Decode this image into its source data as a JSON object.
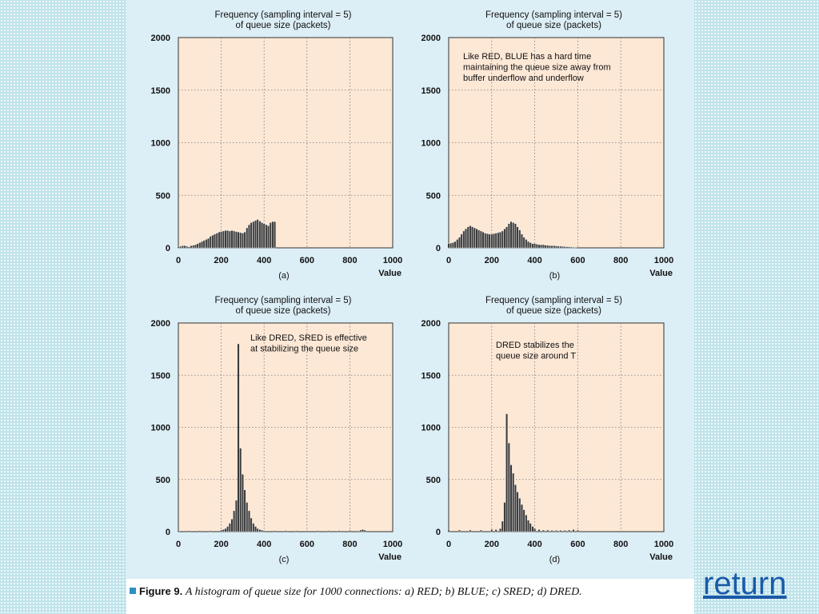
{
  "return_link": "return",
  "figure": {
    "caption_label": "Figure 9.",
    "caption_text": "A histogram of queue size for 1000 connections: a) RED; b) BLUE; c) SRED; d) DRED."
  },
  "colors": {
    "plot_bg": "#fde8d6",
    "panel_bg": "#dceef6",
    "bar": "#3a3a3a",
    "caption_square": "#2c8fc4",
    "page_bg": "#bfe3ea"
  },
  "chart_data": [
    {
      "type": "bar",
      "panel": "(a)",
      "title_lines": [
        "Frequency (sampling interval = 5)",
        "of queue size (packets)"
      ],
      "xlabel": "Value",
      "xlim": [
        0,
        1000
      ],
      "ylim": [
        0,
        2000
      ],
      "xticks": [
        0,
        200,
        400,
        600,
        800,
        1000
      ],
      "yticks": [
        0,
        500,
        1000,
        1500,
        2000
      ],
      "grid": true,
      "annotation": [],
      "x": [
        0,
        10,
        20,
        30,
        40,
        50,
        60,
        70,
        80,
        90,
        100,
        110,
        120,
        130,
        140,
        150,
        160,
        170,
        180,
        190,
        200,
        210,
        220,
        230,
        240,
        250,
        260,
        270,
        280,
        290,
        300,
        310,
        320,
        330,
        340,
        350,
        360,
        370,
        380,
        390,
        400,
        410,
        420,
        430,
        440,
        450
      ],
      "values": [
        10,
        15,
        20,
        20,
        15,
        10,
        20,
        25,
        30,
        40,
        50,
        60,
        70,
        80,
        90,
        110,
        120,
        130,
        140,
        150,
        155,
        160,
        165,
        165,
        160,
        165,
        160,
        155,
        150,
        145,
        140,
        150,
        190,
        220,
        240,
        250,
        260,
        270,
        255,
        240,
        230,
        220,
        210,
        240,
        250,
        250
      ]
    },
    {
      "type": "bar",
      "panel": "(b)",
      "title_lines": [
        "Frequency (sampling interval = 5)",
        "of queue size (packets)"
      ],
      "xlabel": "Value",
      "xlim": [
        0,
        1000
      ],
      "ylim": [
        0,
        2000
      ],
      "xticks": [
        0,
        200,
        400,
        600,
        800,
        1000
      ],
      "yticks": [
        0,
        500,
        1000,
        1500,
        2000
      ],
      "grid": true,
      "annotation": [
        "Like RED, BLUE has a hard time",
        "maintaining the queue size away from",
        "buffer underflow and underflow"
      ],
      "x": [
        0,
        10,
        20,
        30,
        40,
        50,
        60,
        70,
        80,
        90,
        100,
        110,
        120,
        130,
        140,
        150,
        160,
        170,
        180,
        190,
        200,
        210,
        220,
        230,
        240,
        250,
        260,
        270,
        280,
        290,
        300,
        310,
        320,
        330,
        340,
        350,
        360,
        370,
        380,
        390,
        400,
        410,
        420,
        430,
        440,
        450,
        460,
        470,
        480,
        490,
        500,
        510,
        520,
        530,
        540,
        550,
        560,
        570,
        580,
        590
      ],
      "values": [
        40,
        45,
        50,
        60,
        80,
        100,
        130,
        160,
        180,
        200,
        210,
        200,
        190,
        180,
        170,
        160,
        150,
        140,
        135,
        130,
        130,
        135,
        140,
        145,
        150,
        160,
        180,
        200,
        230,
        250,
        240,
        230,
        200,
        170,
        130,
        100,
        80,
        60,
        50,
        40,
        40,
        35,
        30,
        30,
        30,
        25,
        25,
        20,
        20,
        20,
        18,
        16,
        15,
        14,
        12,
        10,
        10,
        8,
        6,
        5
      ]
    },
    {
      "type": "bar",
      "panel": "(c)",
      "title_lines": [
        "Frequency (sampling interval = 5)",
        "of queue size (packets)"
      ],
      "xlabel": "Value",
      "xlim": [
        0,
        1000
      ],
      "ylim": [
        0,
        2000
      ],
      "xticks": [
        0,
        200,
        400,
        600,
        800,
        1000
      ],
      "yticks": [
        0,
        500,
        1000,
        1500,
        2000
      ],
      "grid": true,
      "annotation": [
        "Like DRED, SRED is effective",
        "at stabilizing the queue size"
      ],
      "x": [
        0,
        50,
        100,
        150,
        200,
        210,
        220,
        230,
        240,
        250,
        260,
        270,
        280,
        290,
        300,
        310,
        320,
        330,
        340,
        350,
        360,
        370,
        380,
        390,
        400,
        450,
        500,
        550,
        600,
        650,
        700,
        750,
        800,
        850,
        860,
        870
      ],
      "values": [
        10,
        10,
        10,
        10,
        15,
        20,
        30,
        50,
        80,
        120,
        200,
        300,
        1800,
        800,
        550,
        400,
        280,
        200,
        130,
        80,
        50,
        30,
        20,
        15,
        10,
        10,
        10,
        10,
        10,
        10,
        10,
        10,
        12,
        15,
        20,
        15
      ]
    },
    {
      "type": "bar",
      "panel": "(d)",
      "title_lines": [
        "Frequency (sampling interval = 5)",
        "of queue size (packets)"
      ],
      "xlabel": "Value",
      "xlim": [
        0,
        1000
      ],
      "ylim": [
        0,
        2000
      ],
      "xticks": [
        0,
        200,
        400,
        600,
        800,
        1000
      ],
      "yticks": [
        0,
        500,
        1000,
        1500,
        2000
      ],
      "grid": true,
      "annotation": [
        "DRED stabilizes the",
        "queue size around T"
      ],
      "x": [
        0,
        50,
        100,
        150,
        200,
        220,
        240,
        250,
        260,
        270,
        280,
        290,
        300,
        310,
        320,
        330,
        340,
        350,
        360,
        370,
        380,
        390,
        400,
        420,
        440,
        460,
        480,
        500,
        520,
        540,
        560,
        580,
        600
      ],
      "values": [
        15,
        15,
        15,
        15,
        20,
        20,
        30,
        100,
        280,
        1130,
        850,
        640,
        560,
        450,
        380,
        320,
        260,
        210,
        160,
        110,
        80,
        50,
        30,
        20,
        15,
        15,
        12,
        12,
        12,
        12,
        15,
        20,
        15
      ]
    }
  ]
}
